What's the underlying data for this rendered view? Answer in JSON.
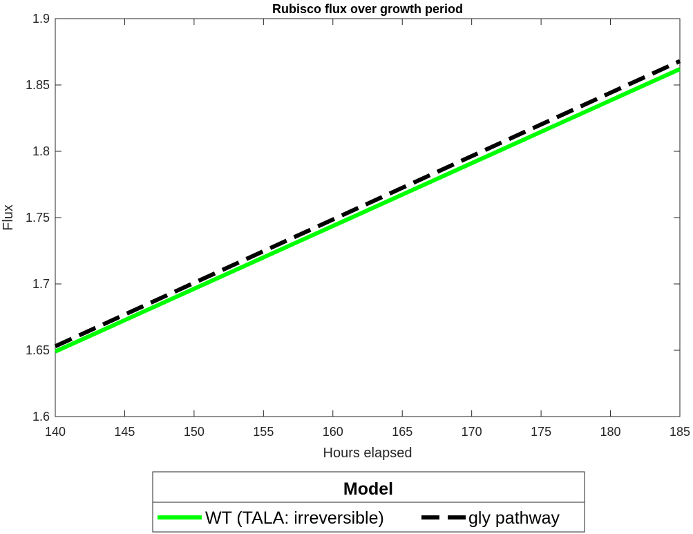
{
  "chart_data": {
    "type": "line",
    "title": "Rubisco flux over growth period",
    "xlabel": "Hours elapsed",
    "ylabel": "Flux",
    "xlim": [
      140,
      185
    ],
    "ylim": [
      1.6,
      1.9
    ],
    "xticks": [
      "140",
      "145",
      "150",
      "155",
      "160",
      "165",
      "170",
      "175",
      "180",
      "185"
    ],
    "yticks": [
      "1.6",
      "1.65",
      "1.7",
      "1.75",
      "1.8",
      "1.85",
      "1.9"
    ],
    "grid": false,
    "legend": {
      "title": "Model",
      "placement": "bottom-outside",
      "orientation": "horizontal"
    },
    "series": [
      {
        "name": "WT (TALA: irreversible)",
        "color": "#00ff00",
        "style": "solid",
        "x": [
          140,
          185
        ],
        "y": [
          1.649,
          1.862
        ]
      },
      {
        "name": "gly pathway",
        "color": "#000000",
        "style": "dashed",
        "x": [
          140,
          185
        ],
        "y": [
          1.653,
          1.868
        ]
      }
    ]
  }
}
